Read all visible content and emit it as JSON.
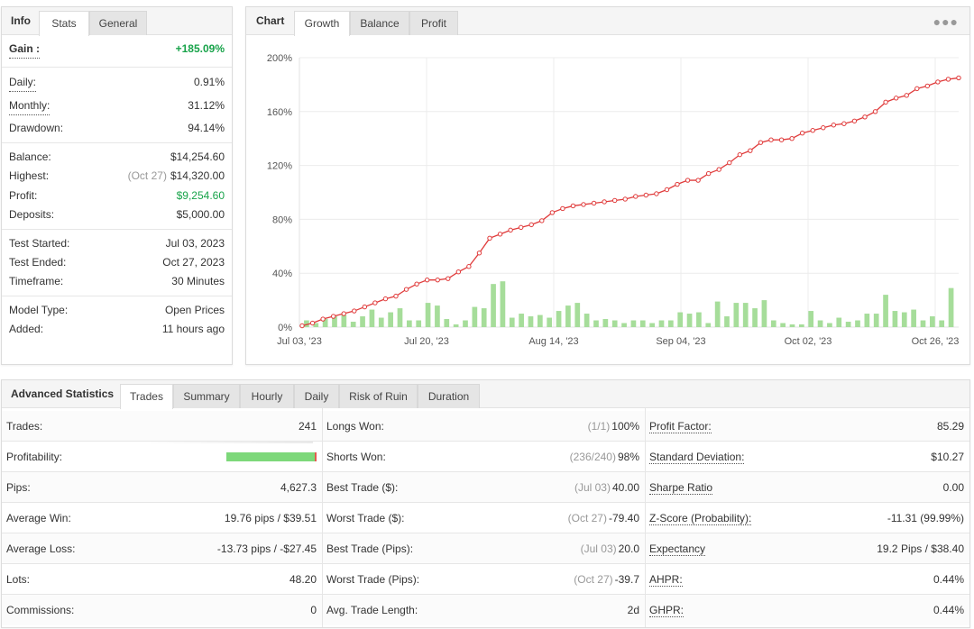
{
  "info_panel": {
    "tabs": [
      "Info",
      "Stats",
      "General"
    ],
    "active_tab": "Stats",
    "gain": {
      "label": "Gain :",
      "value": "+185.09%"
    },
    "daily": {
      "label": "Daily:",
      "value": "0.91%"
    },
    "monthly": {
      "label": "Monthly:",
      "value": "31.12%"
    },
    "drawdown": {
      "label": "Drawdown:",
      "value": "94.14%"
    },
    "balance": {
      "label": "Balance:",
      "value": "$14,254.60"
    },
    "highest": {
      "label": "Highest:",
      "date": "(Oct 27)",
      "value": "$14,320.00"
    },
    "profit": {
      "label": "Profit:",
      "value": "$9,254.60"
    },
    "deposits": {
      "label": "Deposits:",
      "value": "$5,000.00"
    },
    "test_started": {
      "label": "Test Started:",
      "value": "Jul 03, 2023"
    },
    "test_ended": {
      "label": "Test Ended:",
      "value": "Oct 27, 2023"
    },
    "timeframe": {
      "label": "Timeframe:",
      "value": "30 Minutes"
    },
    "model_type": {
      "label": "Model Type:",
      "value": "Open Prices"
    },
    "added": {
      "label": "Added:",
      "value": "11 hours ago"
    }
  },
  "chart_panel": {
    "title": "Chart",
    "tabs": [
      "Growth",
      "Balance",
      "Profit"
    ],
    "active_tab": "Growth",
    "menu_icon": "ellipsis-icon"
  },
  "chart_data": {
    "type": "line",
    "x_tick_labels": [
      "Jul 03, '23",
      "Jul 20, '23",
      "Aug 14, '23",
      "Sep 04, '23",
      "Oct 02, '23",
      "Oct 26, '23"
    ],
    "y_tick_labels": [
      "0%",
      "40%",
      "80%",
      "120%",
      "160%",
      "200%"
    ],
    "ylim": [
      0,
      200
    ],
    "grid": true,
    "series": [
      {
        "type": "line",
        "color": "#e03b3b",
        "values": [
          1,
          3,
          6,
          8,
          10,
          12,
          15,
          18,
          21,
          23,
          28,
          32,
          35,
          35,
          36,
          41,
          45,
          55,
          66,
          69,
          72,
          74,
          76,
          79,
          85,
          88,
          90,
          91,
          92,
          93,
          94,
          95,
          97,
          98,
          99,
          102,
          106,
          109,
          109,
          114,
          117,
          122,
          128,
          131,
          137,
          139,
          139,
          140,
          144,
          146,
          148,
          150,
          151,
          153,
          156,
          160,
          167,
          170,
          172,
          177,
          179,
          182,
          184,
          185
        ],
        "markers": true
      },
      {
        "type": "bar",
        "color": "#a6dd9a",
        "values": [
          5,
          3,
          6,
          8,
          9,
          4,
          8,
          13,
          7,
          11,
          14,
          5,
          5,
          18,
          16,
          6,
          2,
          5,
          15,
          14,
          32,
          34,
          7,
          10,
          8,
          9,
          7,
          12,
          16,
          18,
          10,
          5,
          6,
          5,
          3,
          5,
          5,
          3,
          5,
          5,
          11,
          10,
          11,
          3,
          19,
          8,
          18,
          18,
          14,
          20,
          5,
          3,
          2,
          2,
          12,
          5,
          3,
          7,
          4,
          5,
          10,
          10,
          24,
          12,
          11,
          13,
          5,
          8,
          5,
          29
        ]
      }
    ]
  },
  "advanced_stats": {
    "title": "Advanced Statistics",
    "tabs": [
      "Trades",
      "Summary",
      "Hourly",
      "Daily",
      "Risk of Ruin",
      "Duration"
    ],
    "active_tab": "Trades",
    "col1": [
      {
        "label": "Trades:",
        "value": "241"
      },
      {
        "label": "Profitability:",
        "value": "",
        "bar_won_fraction": 0.98
      },
      {
        "label": "Pips:",
        "value": "4,627.3"
      },
      {
        "label": "Average Win:",
        "value": "19.76 pips / $39.51"
      },
      {
        "label": "Average Loss:",
        "value": "-13.73 pips / -$27.45"
      },
      {
        "label": "Lots:",
        "value": "48.20"
      },
      {
        "label": "Commissions:",
        "value": "0"
      }
    ],
    "col2": [
      {
        "label": "Longs Won:",
        "sub": "(1/1)",
        "value": "100%"
      },
      {
        "label": "Shorts Won:",
        "sub": "(236/240)",
        "value": "98%"
      },
      {
        "label": "Best Trade ($):",
        "sub": "(Jul 03)",
        "value": "40.00"
      },
      {
        "label": "Worst Trade ($):",
        "sub": "(Oct 27)",
        "value": "-79.40"
      },
      {
        "label": "Best Trade (Pips):",
        "sub": "(Jul 03)",
        "value": "20.0"
      },
      {
        "label": "Worst Trade (Pips):",
        "sub": "(Oct 27)",
        "value": "-39.7"
      },
      {
        "label": "Avg. Trade Length:",
        "sub": "",
        "value": "2d"
      }
    ],
    "col3": [
      {
        "label": "Profit Factor:",
        "value": "85.29"
      },
      {
        "label": "Standard Deviation:",
        "value": "$10.27"
      },
      {
        "label": "Sharpe Ratio",
        "value": "0.00"
      },
      {
        "label": "Z-Score (Probability):",
        "value": "-11.31 (99.99%)"
      },
      {
        "label": "Expectancy",
        "value": "19.2 Pips / $38.40"
      },
      {
        "label": "AHPR:",
        "value": "0.44%"
      },
      {
        "label": "GHPR:",
        "value": "0.44%"
      }
    ]
  }
}
